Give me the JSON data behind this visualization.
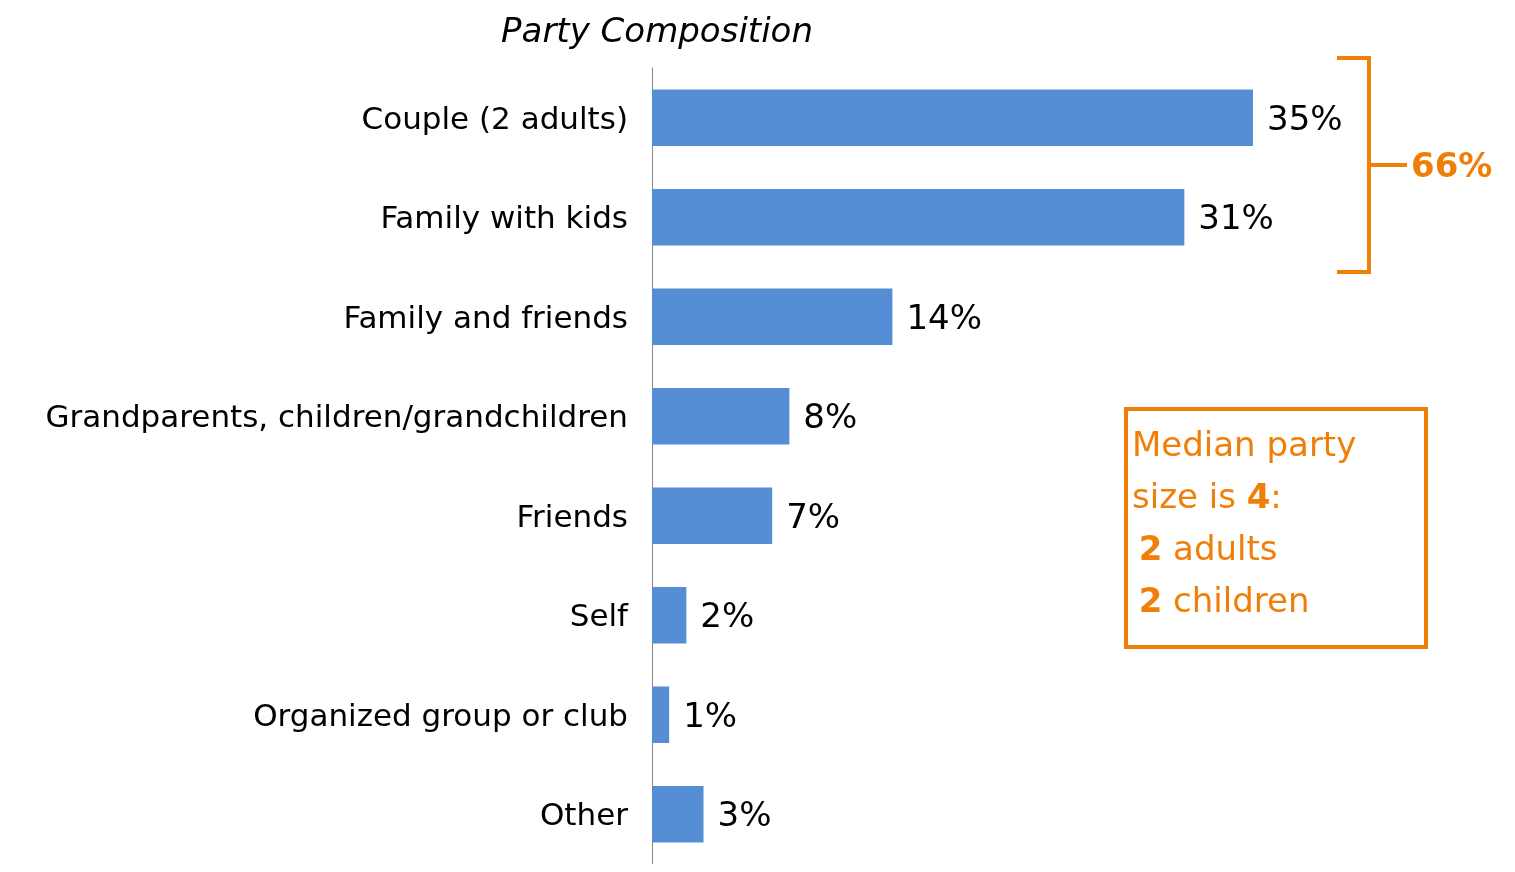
{
  "chart_data": {
    "type": "bar",
    "orientation": "horizontal",
    "title": "Party Composition",
    "categories": [
      "Couple (2 adults)",
      "Family with kids",
      "Family and friends",
      "Grandparents, children/grandchildren",
      "Friends",
      "Self",
      "Organized group or club",
      "Other"
    ],
    "values": [
      35,
      31,
      14,
      8,
      7,
      2,
      1,
      3
    ],
    "value_labels": [
      "35%",
      "31%",
      "14%",
      "8%",
      "7%",
      "2%",
      "1%",
      "3%"
    ],
    "color": "#558ed5",
    "annotations": [
      "66%",
      "Median party\nsize is 4:\n2 adults\n2 children"
    ],
    "grid": false
  }
}
